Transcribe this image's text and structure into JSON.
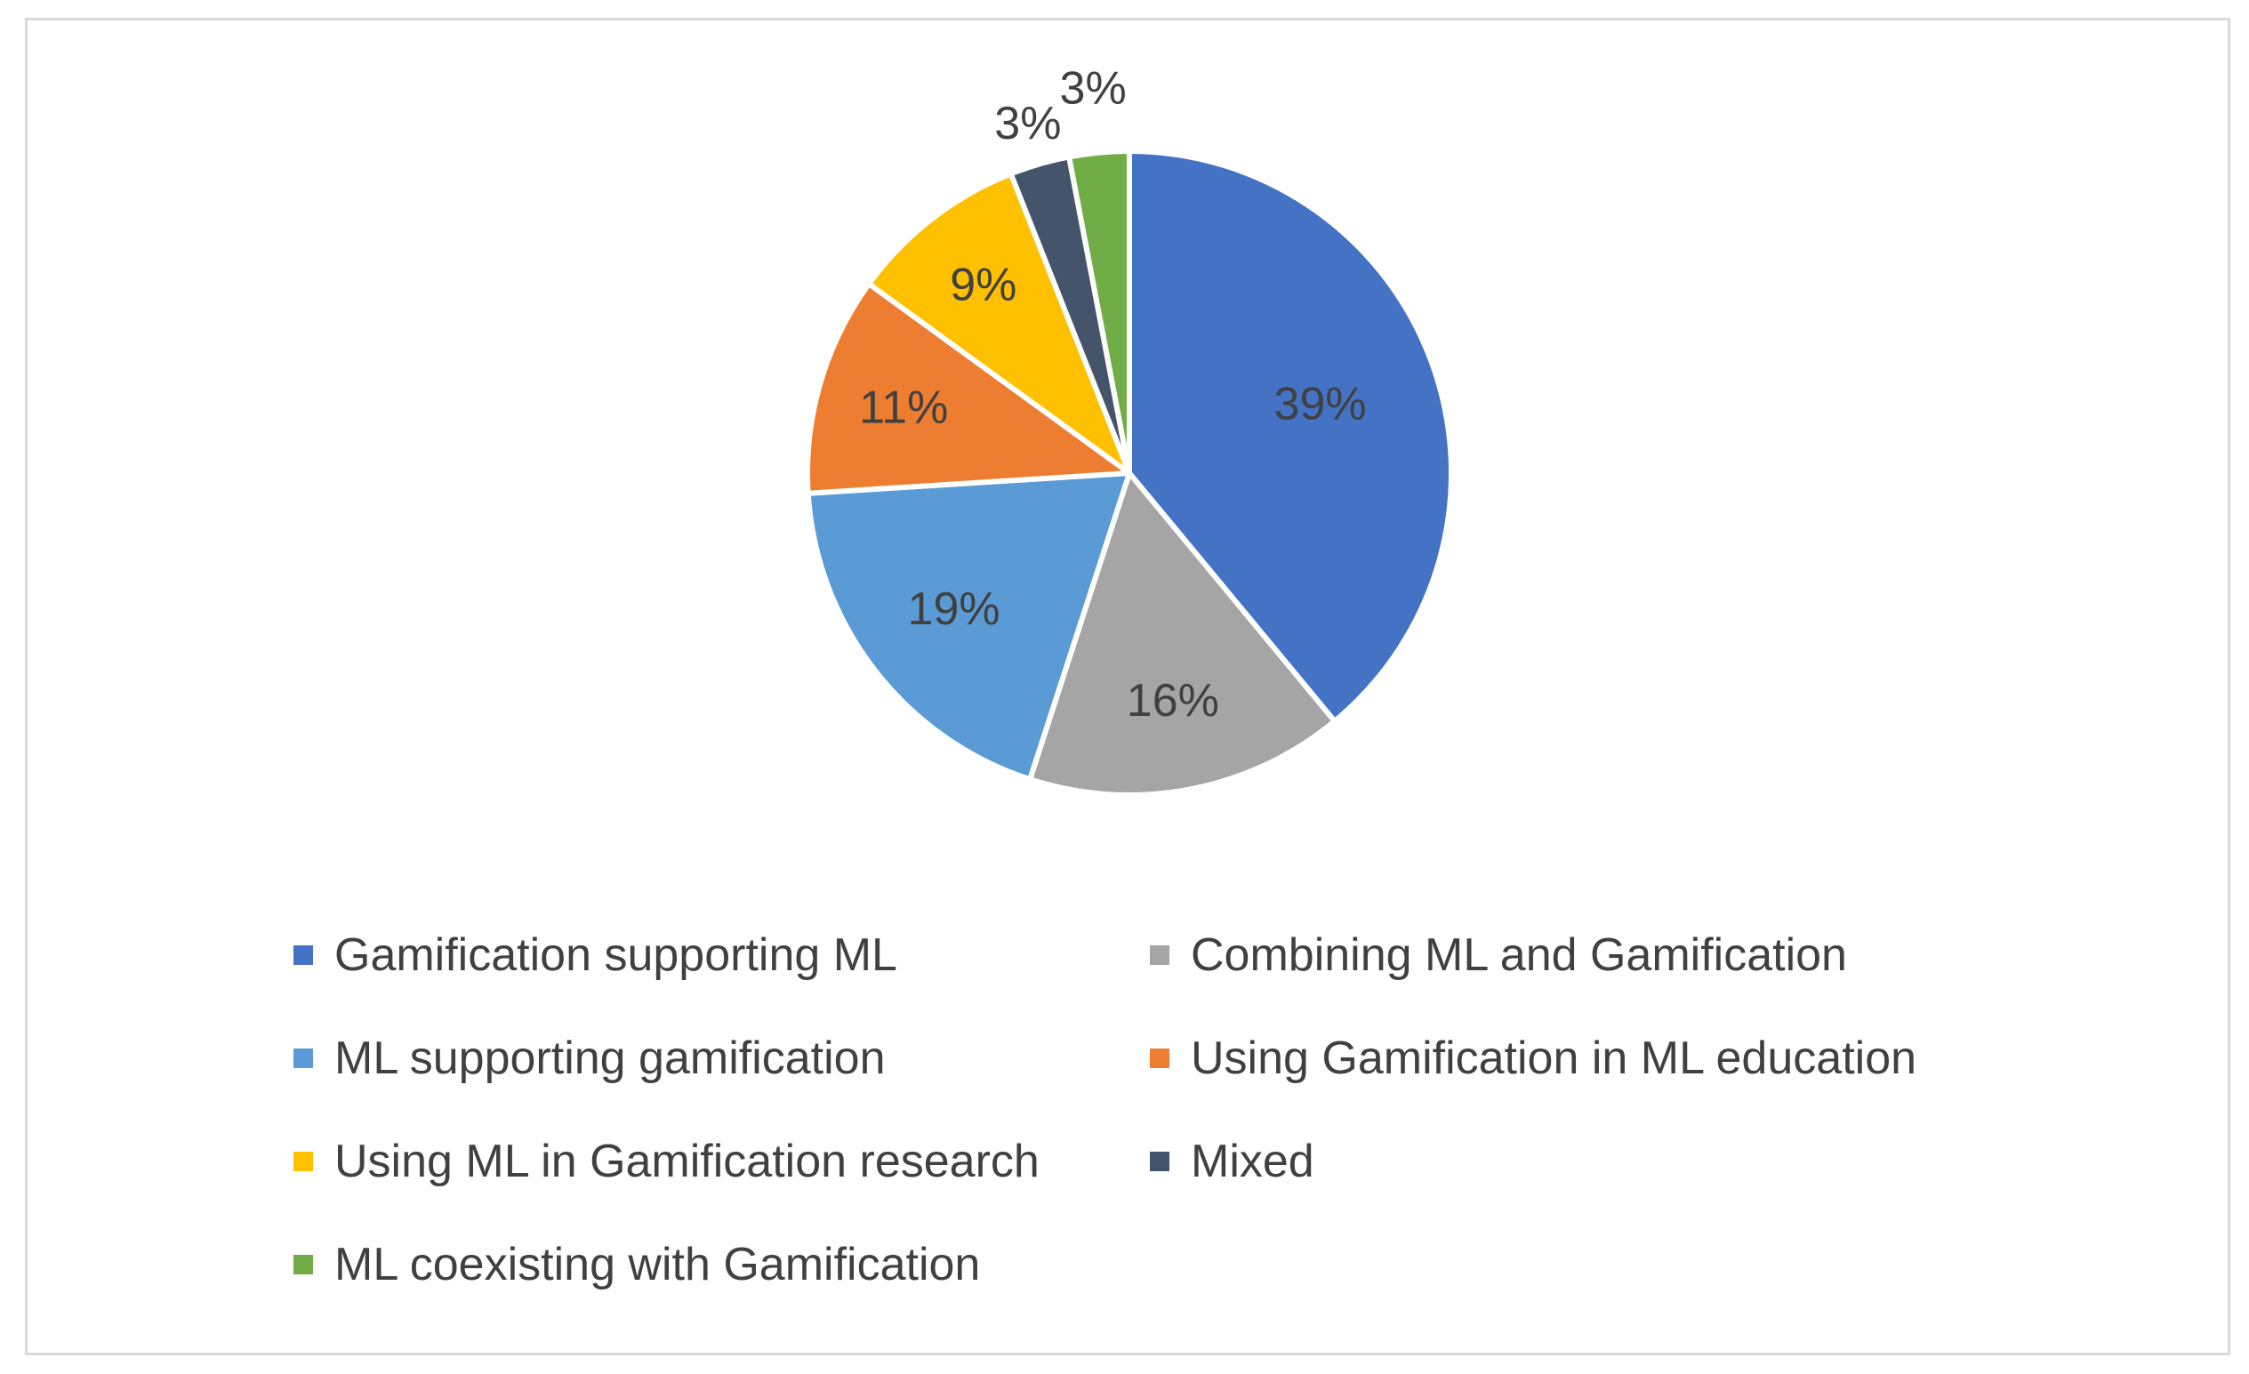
{
  "chart_data": {
    "type": "pie",
    "title": "",
    "start_angle_deg": 0,
    "direction": "clockwise",
    "legend_position": "bottom",
    "slices": [
      {
        "name": "Gamification supporting ML",
        "value": 39,
        "label": "39%",
        "color": "#4472C4"
      },
      {
        "name": "Combining ML and Gamification",
        "value": 16,
        "label": "16%",
        "color": "#A5A5A5"
      },
      {
        "name": "ML supporting gamification",
        "value": 19,
        "label": "19%",
        "color": "#5B9BD5"
      },
      {
        "name": "Using Gamification in ML education",
        "value": 11,
        "label": "11%",
        "color": "#ED7D31"
      },
      {
        "name": "Using ML in Gamification research",
        "value": 9,
        "label": "9%",
        "color": "#FFC000"
      },
      {
        "name": "Mixed",
        "value": 3,
        "label": "3%",
        "color": "#44546A"
      },
      {
        "name": "ML coexisting with Gamification",
        "value": 3,
        "label": "3%",
        "color": "#70AD47"
      }
    ]
  }
}
